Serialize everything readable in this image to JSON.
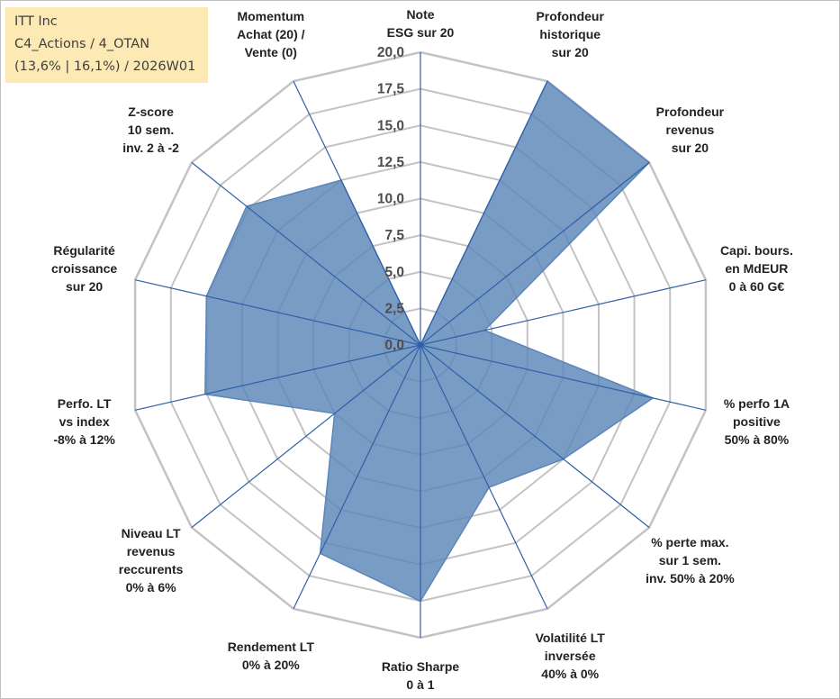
{
  "info": {
    "line1": "ITT Inc",
    "line2": "C4_Actions / 4_OTAN",
    "line3": "(13,6% | 16,1%) / 2026W01"
  },
  "colors": {
    "fill": "#5b86b8",
    "axis": "#2e5fa8",
    "grid": "#c3c3c3",
    "info_bg": "#fde9b3"
  },
  "chart_data": {
    "type": "radar",
    "title": "",
    "rmin": 0,
    "rmax": 20,
    "ticks": [
      "0,0",
      "2,5",
      "5,0",
      "7,5",
      "10,0",
      "12,5",
      "15,0",
      "17,5",
      "20,0"
    ],
    "axes": [
      {
        "label": [
          "Note",
          "ESG sur 20"
        ],
        "value": 0
      },
      {
        "label": [
          "Profondeur",
          "historique",
          "sur 20"
        ],
        "value": 20
      },
      {
        "label": [
          "Profondeur",
          "revenus",
          "sur 20"
        ],
        "value": 20
      },
      {
        "label": [
          "Capi. bours.",
          "en MdEUR",
          "0 à 60 G€"
        ],
        "value": 4.5
      },
      {
        "label": [
          "% perfo 1A",
          "positive",
          "50% à 80%"
        ],
        "value": 16.3
      },
      {
        "label": [
          "% perte max.",
          "sur 1 sem.",
          "inv. 50% à 20%"
        ],
        "value": 12.5
      },
      {
        "label": [
          "Volatilité LT",
          "inversée",
          "40% à 0%"
        ],
        "value": 10.8
      },
      {
        "label": [
          "Ratio Sharpe",
          "0 à 1"
        ],
        "value": 17.5
      },
      {
        "label": [
          "Rendement LT",
          "0% à 20%"
        ],
        "value": 15.8
      },
      {
        "label": [
          "Niveau LT",
          "revenus",
          "reccurents",
          "0% à 6%"
        ],
        "value": 7.5
      },
      {
        "label": [
          "Perfo. LT",
          "vs index",
          "-8% à 12%"
        ],
        "value": 15.1
      },
      {
        "label": [
          "Régularité",
          "croissance",
          "sur 20"
        ],
        "value": 15.0
      },
      {
        "label": [
          "Z-score",
          "10 sem.",
          "inv. 2 à -2"
        ],
        "value": 15.2
      },
      {
        "label": [
          "Momentum",
          "Achat (20) /",
          "Vente (0)"
        ],
        "value": 12.5
      }
    ]
  }
}
